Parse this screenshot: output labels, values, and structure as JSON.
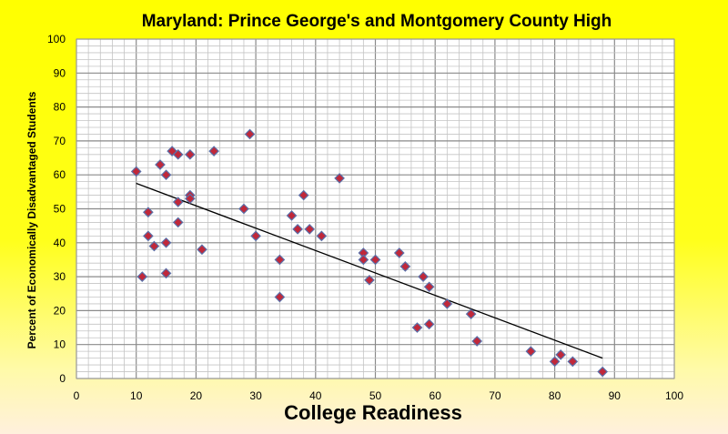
{
  "chart_data": {
    "type": "scatter",
    "title": "Maryland: Prince George's and Montgomery County High",
    "xlabel": "College Readiness",
    "ylabel": "Percent of Economically Disadvantaged Students",
    "xlim": [
      0,
      100
    ],
    "ylim": [
      0,
      100
    ],
    "major_step": 10,
    "minor_step": 2,
    "grid": true,
    "legend": "none",
    "marker_color": "#c0283a",
    "marker_edge": "#5a6fa8",
    "xticks": [
      "0",
      "10",
      "20",
      "30",
      "40",
      "50",
      "60",
      "70",
      "80",
      "90",
      "100"
    ],
    "yticks": [
      "0",
      "10",
      "20",
      "30",
      "40",
      "50",
      "60",
      "70",
      "80",
      "90",
      "100"
    ],
    "points": [
      [
        10,
        61
      ],
      [
        11,
        30
      ],
      [
        12,
        49
      ],
      [
        12,
        42
      ],
      [
        13,
        39
      ],
      [
        14,
        63
      ],
      [
        15,
        60
      ],
      [
        15,
        40
      ],
      [
        15,
        31
      ],
      [
        16,
        67
      ],
      [
        17,
        66
      ],
      [
        17,
        52
      ],
      [
        17,
        46
      ],
      [
        19,
        66
      ],
      [
        19,
        54
      ],
      [
        19,
        53
      ],
      [
        21,
        38
      ],
      [
        23,
        67
      ],
      [
        28,
        50
      ],
      [
        29,
        72
      ],
      [
        30,
        42
      ],
      [
        34,
        35
      ],
      [
        34,
        24
      ],
      [
        36,
        48
      ],
      [
        37,
        44
      ],
      [
        38,
        54
      ],
      [
        39,
        44
      ],
      [
        41,
        42
      ],
      [
        44,
        59
      ],
      [
        48,
        37
      ],
      [
        48,
        35
      ],
      [
        49,
        29
      ],
      [
        50,
        35
      ],
      [
        54,
        37
      ],
      [
        55,
        33
      ],
      [
        57,
        15
      ],
      [
        58,
        30
      ],
      [
        59,
        27
      ],
      [
        59,
        16
      ],
      [
        62,
        22
      ],
      [
        66,
        19
      ],
      [
        67,
        11
      ],
      [
        76,
        8
      ],
      [
        80,
        5
      ],
      [
        81,
        7
      ],
      [
        83,
        5
      ],
      [
        88,
        2
      ]
    ],
    "trendline": {
      "x": [
        10,
        88
      ],
      "y": [
        57.5,
        6
      ]
    }
  }
}
